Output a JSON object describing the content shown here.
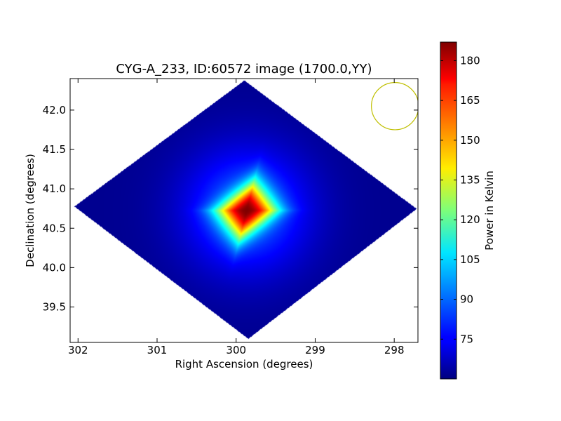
{
  "chart_data": {
    "type": "heatmap",
    "title": "CYG-A_233, ID:60572 image (1700.0,YY)",
    "xlabel": "Right Ascension (degrees)",
    "ylabel": "Declination (degrees)",
    "colorbar_label": "Power in Kelvin",
    "xlim": [
      302.1,
      297.7
    ],
    "ylim": [
      39.05,
      42.4
    ],
    "xticks": [
      302,
      301,
      300,
      299,
      298
    ],
    "xtick_labels": [
      "302",
      "301",
      "300",
      "299",
      "298"
    ],
    "yticks": [
      39.5,
      40.0,
      40.5,
      41.0,
      41.5,
      42.0
    ],
    "ytick_labels": [
      "39.5",
      "40.0",
      "40.5",
      "41.0",
      "41.5",
      "42.0"
    ],
    "colorbar_range": [
      60,
      187
    ],
    "colorbar_ticks": [
      75,
      90,
      105,
      120,
      135,
      150,
      165,
      180
    ],
    "colorbar_tick_labels": [
      "75",
      "90",
      "105",
      "120",
      "135",
      "150",
      "165",
      "180"
    ],
    "colormap": "jet",
    "source": {
      "ra": 299.87,
      "dec": 40.73,
      "peak": 187,
      "background": 62
    },
    "coverage_region": {
      "shape": "diamond",
      "vertices_ra_dec": [
        [
          299.9,
          42.38
        ],
        [
          297.72,
          40.75
        ],
        [
          299.85,
          39.1
        ],
        [
          302.05,
          40.78
        ]
      ]
    },
    "beam": {
      "ra": 297.99,
      "dec": 42.05,
      "radius_deg": 0.3,
      "color": "#bfbf00"
    },
    "grid": false,
    "colorbar_position": "right"
  }
}
